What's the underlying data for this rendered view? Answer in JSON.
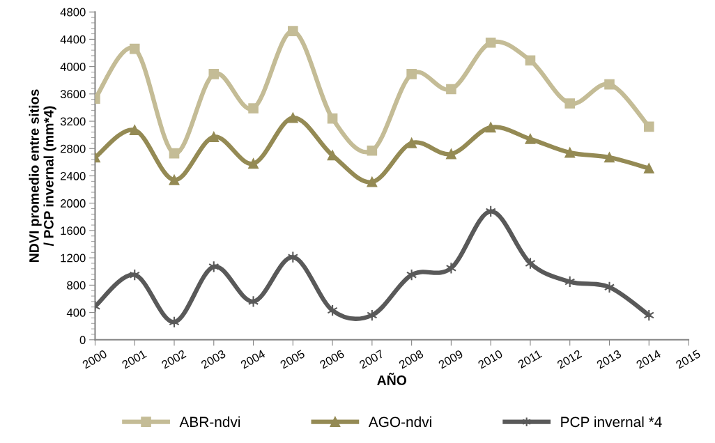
{
  "chart_data": {
    "type": "line",
    "xlabel": "AÑO",
    "ylabel": "NDVI promedio entre sitios\n/ PCP invernal (mm*4)",
    "x": [
      2000,
      2001,
      2002,
      2003,
      2004,
      2005,
      2006,
      2007,
      2008,
      2009,
      2010,
      2011,
      2012,
      2013,
      2014
    ],
    "xlim": [
      2000,
      2015
    ],
    "xticks": [
      2000,
      2001,
      2002,
      2003,
      2004,
      2005,
      2006,
      2007,
      2008,
      2009,
      2010,
      2011,
      2012,
      2013,
      2014,
      2015
    ],
    "ylim": [
      0,
      4800
    ],
    "yticks": [
      0,
      400,
      800,
      1200,
      1600,
      2000,
      2400,
      2800,
      3200,
      3600,
      4000,
      4400,
      4800
    ],
    "grid": false,
    "legend": "bottom",
    "series": [
      {
        "name": "ABR-ndvi",
        "color": "#c4bc96",
        "marker": "square",
        "values": [
          3530,
          4260,
          2730,
          3890,
          3390,
          4520,
          3240,
          2770,
          3890,
          3670,
          4350,
          4090,
          3460,
          3740,
          3120
        ]
      },
      {
        "name": "AGO-ndvi",
        "color": "#948a54",
        "marker": "triangle",
        "values": [
          2670,
          3070,
          2340,
          2970,
          2580,
          3250,
          2700,
          2310,
          2880,
          2720,
          3110,
          2940,
          2740,
          2670,
          2510
        ]
      },
      {
        "name": "PCP invernal *4",
        "color": "#595959",
        "marker": "cross",
        "values": [
          490,
          950,
          260,
          1070,
          560,
          1210,
          430,
          360,
          950,
          1050,
          1880,
          1120,
          850,
          770,
          360
        ]
      }
    ]
  }
}
